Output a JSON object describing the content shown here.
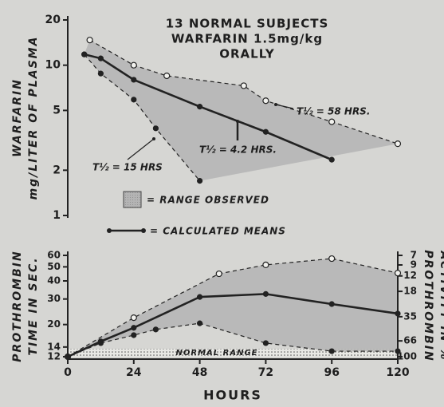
{
  "chart_data": [
    {
      "type": "line",
      "title": [
        "13 NORMAL SUBJECTS",
        "WARFARIN 1.5mg/kg",
        "ORALLY"
      ],
      "ylabel": [
        "WARFARIN",
        "mg/LITER OF PLASMA"
      ],
      "xlim": [
        0,
        120
      ],
      "ylim": [
        1,
        20
      ],
      "ylog": true,
      "yticks": [
        1,
        2,
        5,
        10,
        20
      ],
      "range_fill": "#b4b4b4",
      "series": [
        {
          "color": "#222",
          "dash": true,
          "marker": "open",
          "x": [
            8,
            24,
            36,
            64,
            72,
            96,
            120
          ],
          "values": [
            14.7,
            10,
            8.5,
            7.3,
            5.8,
            4.2,
            3.0
          ]
        },
        {
          "color": "#222",
          "dash": false,
          "marker": "filled",
          "x": [
            6,
            12,
            24,
            48,
            72,
            96
          ],
          "values": [
            11.8,
            11.1,
            8,
            5.3,
            3.6,
            2.35
          ]
        },
        {
          "color": "#222",
          "dash": true,
          "marker": "filled",
          "x": [
            6,
            12,
            24,
            32,
            48
          ],
          "values": [
            11.8,
            8.8,
            5.9,
            3.8,
            1.7
          ]
        }
      ],
      "annotations": [
        "T½ = 58 HRS.",
        "T½ = 4.2 HRS.",
        "T½ = 15 HRS"
      ],
      "legend": [
        "= RANGE OBSERVED",
        "= CALCULATED MEANS"
      ]
    },
    {
      "type": "line",
      "ylabel": [
        "PROTHROMBIN",
        "TIME IN SEC."
      ],
      "y2label": [
        "PROTHROMBIN",
        "ACTIVITY IN %"
      ],
      "xlabel": "HOURS",
      "xlim": [
        0,
        120
      ],
      "xticks": [
        0,
        24,
        48,
        72,
        96,
        120
      ],
      "ylim": [
        12,
        60
      ],
      "ylog": true,
      "yticks": [
        12,
        14,
        20,
        30,
        40,
        50,
        60
      ],
      "y2lim": [
        100,
        7
      ],
      "y2log": true,
      "y2ticks": [
        7,
        9,
        12,
        18,
        35,
        66,
        100
      ],
      "range_fill": "#b4b4b4",
      "normal_range": [
        12,
        13.6
      ],
      "normal_label": "NORMAL RANGE",
      "series": [
        {
          "color": "#222",
          "dash": true,
          "marker": "open",
          "x": [
            0,
            24,
            55,
            72,
            96,
            120
          ],
          "values": [
            12,
            22.3,
            44.8,
            51.6,
            57,
            45.3
          ]
        },
        {
          "color": "#222",
          "dash": false,
          "marker": "filled",
          "x": [
            0,
            12,
            24,
            48,
            72,
            96,
            120
          ],
          "values": [
            12,
            15.3,
            19,
            31,
            32.5,
            27.7,
            23.8
          ]
        },
        {
          "color": "#222",
          "dash": true,
          "marker": "filled",
          "x": [
            0,
            12,
            24,
            32,
            48,
            72,
            96,
            120
          ],
          "values": [
            12,
            14.9,
            16.9,
            18.5,
            20.4,
            14.9,
            13.1,
            13.1
          ]
        }
      ]
    }
  ]
}
